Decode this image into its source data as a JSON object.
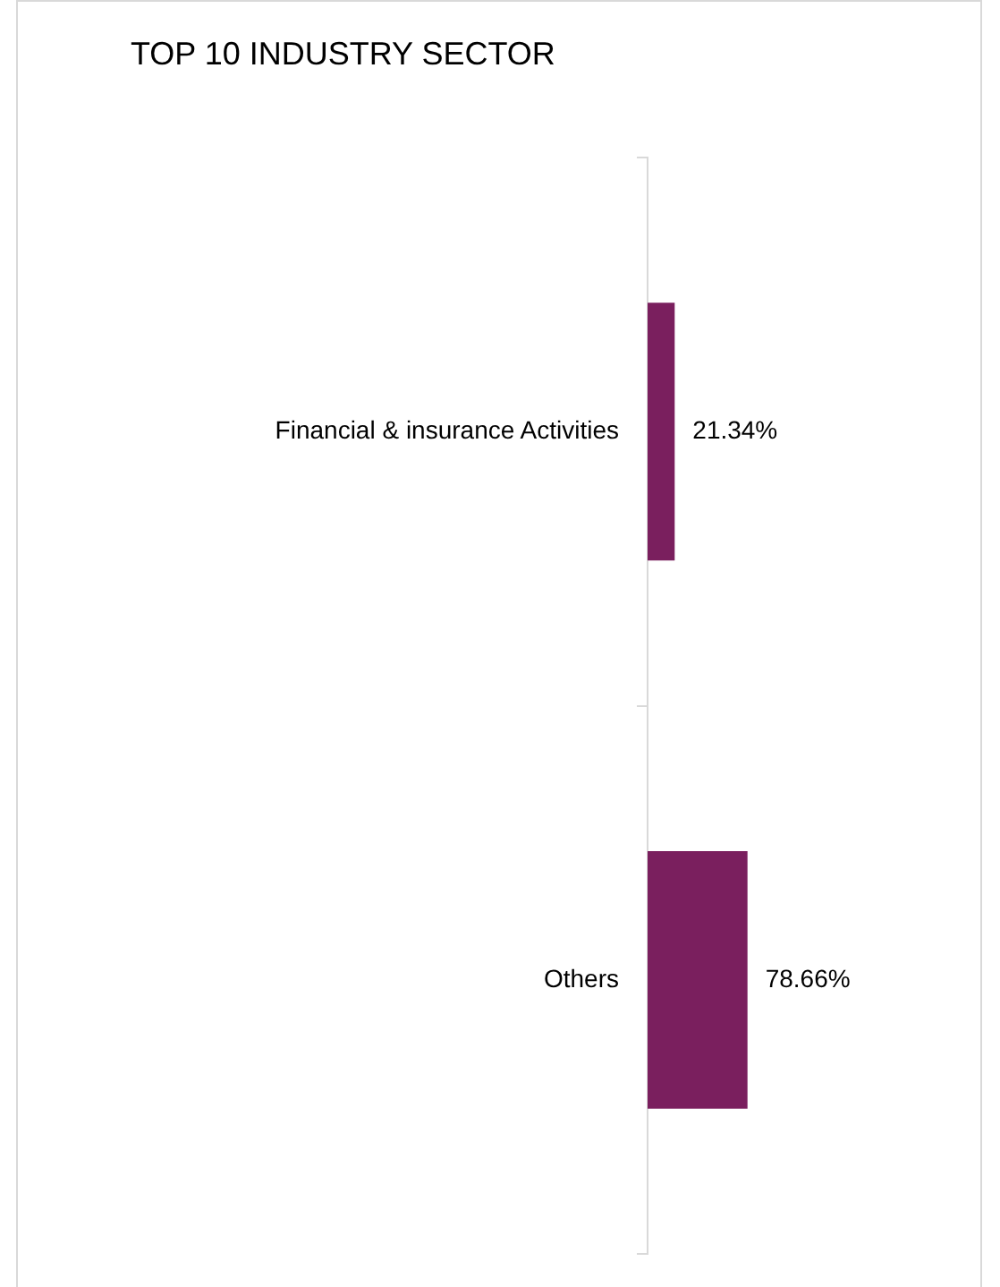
{
  "chart_data": {
    "type": "bar",
    "orientation": "horizontal",
    "title": "TOP 10 INDUSTRY SECTOR",
    "categories": [
      "Financial & insurance Activities",
      "Others"
    ],
    "values": [
      21.34,
      78.66
    ],
    "color": "#7a1f5e",
    "value_labels": [
      "21.34%",
      "78.66%"
    ],
    "tick_labels": "y",
    "legend": false,
    "grid": false
  }
}
